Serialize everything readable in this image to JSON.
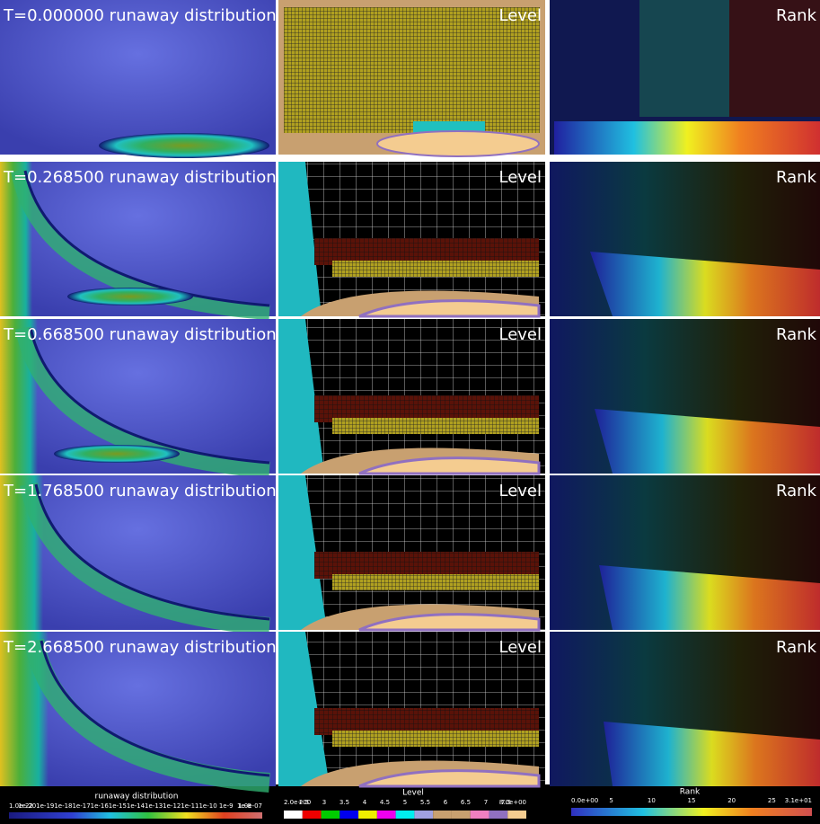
{
  "panels": [
    {
      "time_label": "T=0.000000  runaway distribution",
      "level_label": "Level",
      "rank_label": "Rank"
    },
    {
      "time_label": "T=0.268500  runaway distribution",
      "level_label": "Level",
      "rank_label": "Rank"
    },
    {
      "time_label": "T=0.668500  runaway distribution",
      "level_label": "Level",
      "rank_label": "Rank"
    },
    {
      "time_label": "T=1.768500  runaway distribution",
      "level_label": "Level",
      "rank_label": "Rank"
    },
    {
      "time_label": "T=2.668500  runaway distribution",
      "level_label": "Level",
      "rank_label": "Rank"
    }
  ],
  "colorbars": [
    {
      "title": "runaway distribution",
      "ticks": [
        "1.0e-22",
        "1e-20",
        "1e-19",
        "1e-18",
        "1e-17",
        "1e-16",
        "1e-15",
        "1e-14",
        "1e-13",
        "1e-12",
        "1e-11",
        "1e-10",
        "1e-9",
        "1e-8",
        "1.0e-07"
      ]
    },
    {
      "title": "Level",
      "ticks": [
        "2.0e+00",
        "2.5",
        "3",
        "3.5",
        "4",
        "4.5",
        "5",
        "5.5",
        "6",
        "6.5",
        "7",
        "7.5",
        "8.0e+00"
      ]
    },
    {
      "title": "Rank",
      "ticks": [
        "0.0e+00",
        "5",
        "10",
        "15",
        "20",
        "25",
        "3.1e+01"
      ]
    }
  ]
}
